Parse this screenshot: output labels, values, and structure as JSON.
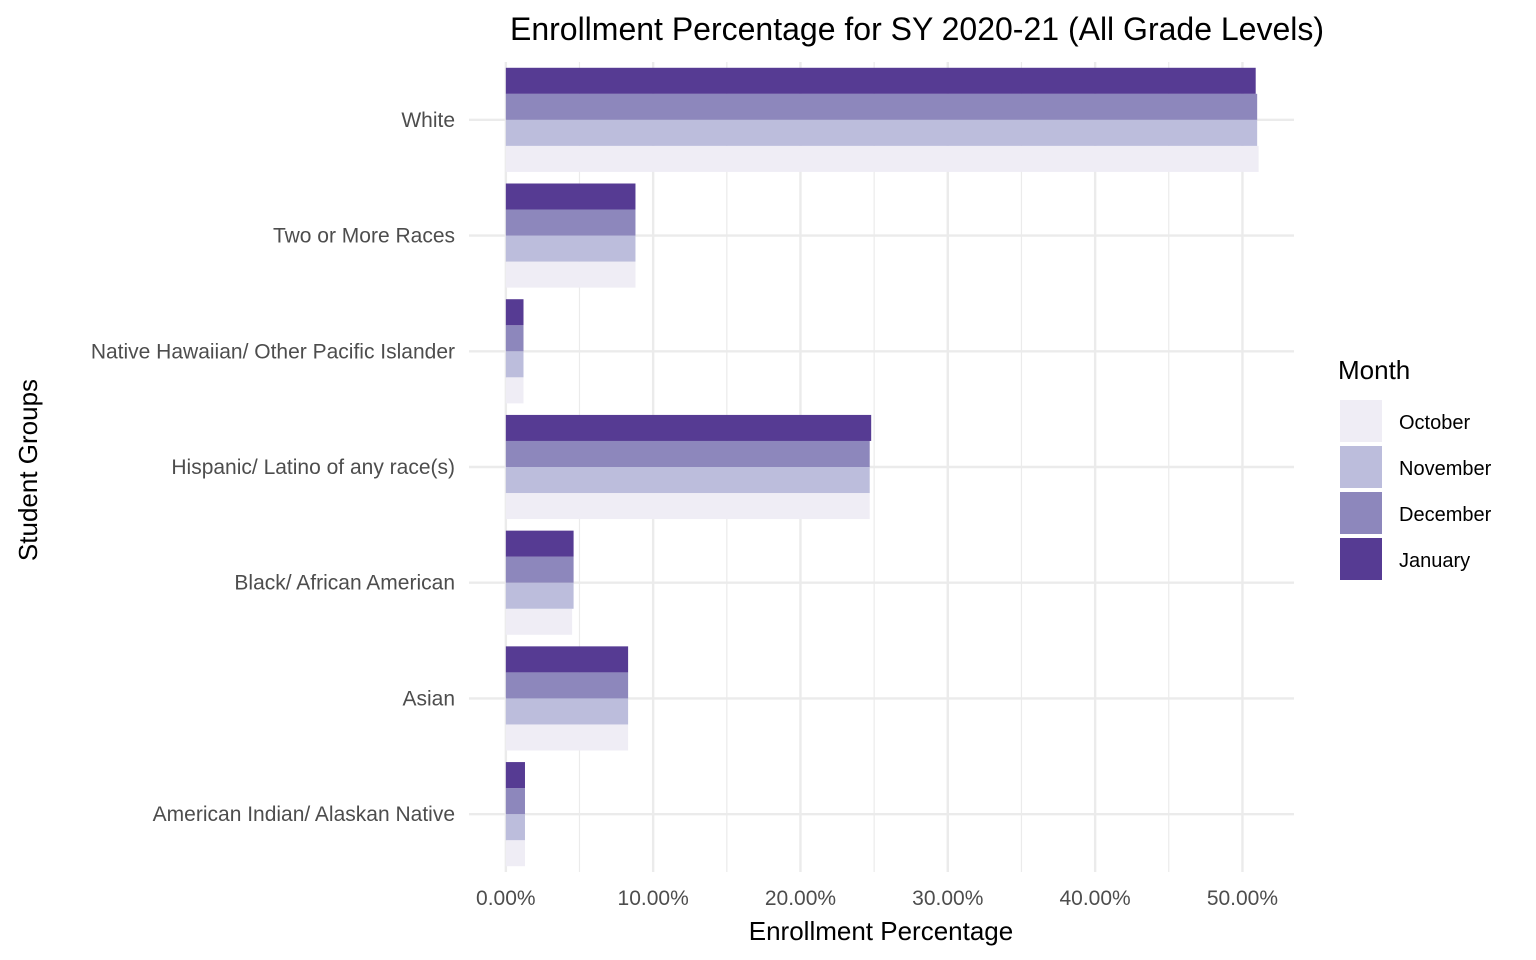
{
  "chart_data": {
    "type": "bar",
    "orientation": "horizontal",
    "title": "Enrollment Percentage for SY 2020-21 (All Grade Levels)",
    "xlabel": "Enrollment Percentage",
    "ylabel": "Student Groups",
    "xlim": [
      -2.5,
      53.5
    ],
    "x_ticks": [
      0,
      10,
      20,
      30,
      40,
      50
    ],
    "x_tick_labels": [
      "0.00%",
      "10.00%",
      "20.00%",
      "30.00%",
      "40.00%",
      "50.00%"
    ],
    "grid": true,
    "legend_title": "Month",
    "legend_position": "right",
    "categories": [
      "American Indian/ Alaskan Native",
      "Asian",
      "Black/ African American",
      "Hispanic/ Latino of any race(s)",
      "Native Hawaiian/ Other Pacific Islander",
      "Two or More Races",
      "White"
    ],
    "series": [
      {
        "name": "October",
        "color": "#efedf5",
        "values": [
          1.3,
          8.3,
          4.5,
          24.7,
          1.2,
          8.8,
          51.1
        ]
      },
      {
        "name": "November",
        "color": "#bcbddc",
        "values": [
          1.3,
          8.3,
          4.6,
          24.7,
          1.2,
          8.8,
          51.0
        ]
      },
      {
        "name": "December",
        "color": "#8d87bc",
        "values": [
          1.3,
          8.3,
          4.6,
          24.7,
          1.2,
          8.8,
          51.0
        ]
      },
      {
        "name": "January",
        "color": "#563b93",
        "values": [
          1.3,
          8.3,
          4.6,
          24.8,
          1.2,
          8.8,
          50.9
        ]
      }
    ]
  }
}
